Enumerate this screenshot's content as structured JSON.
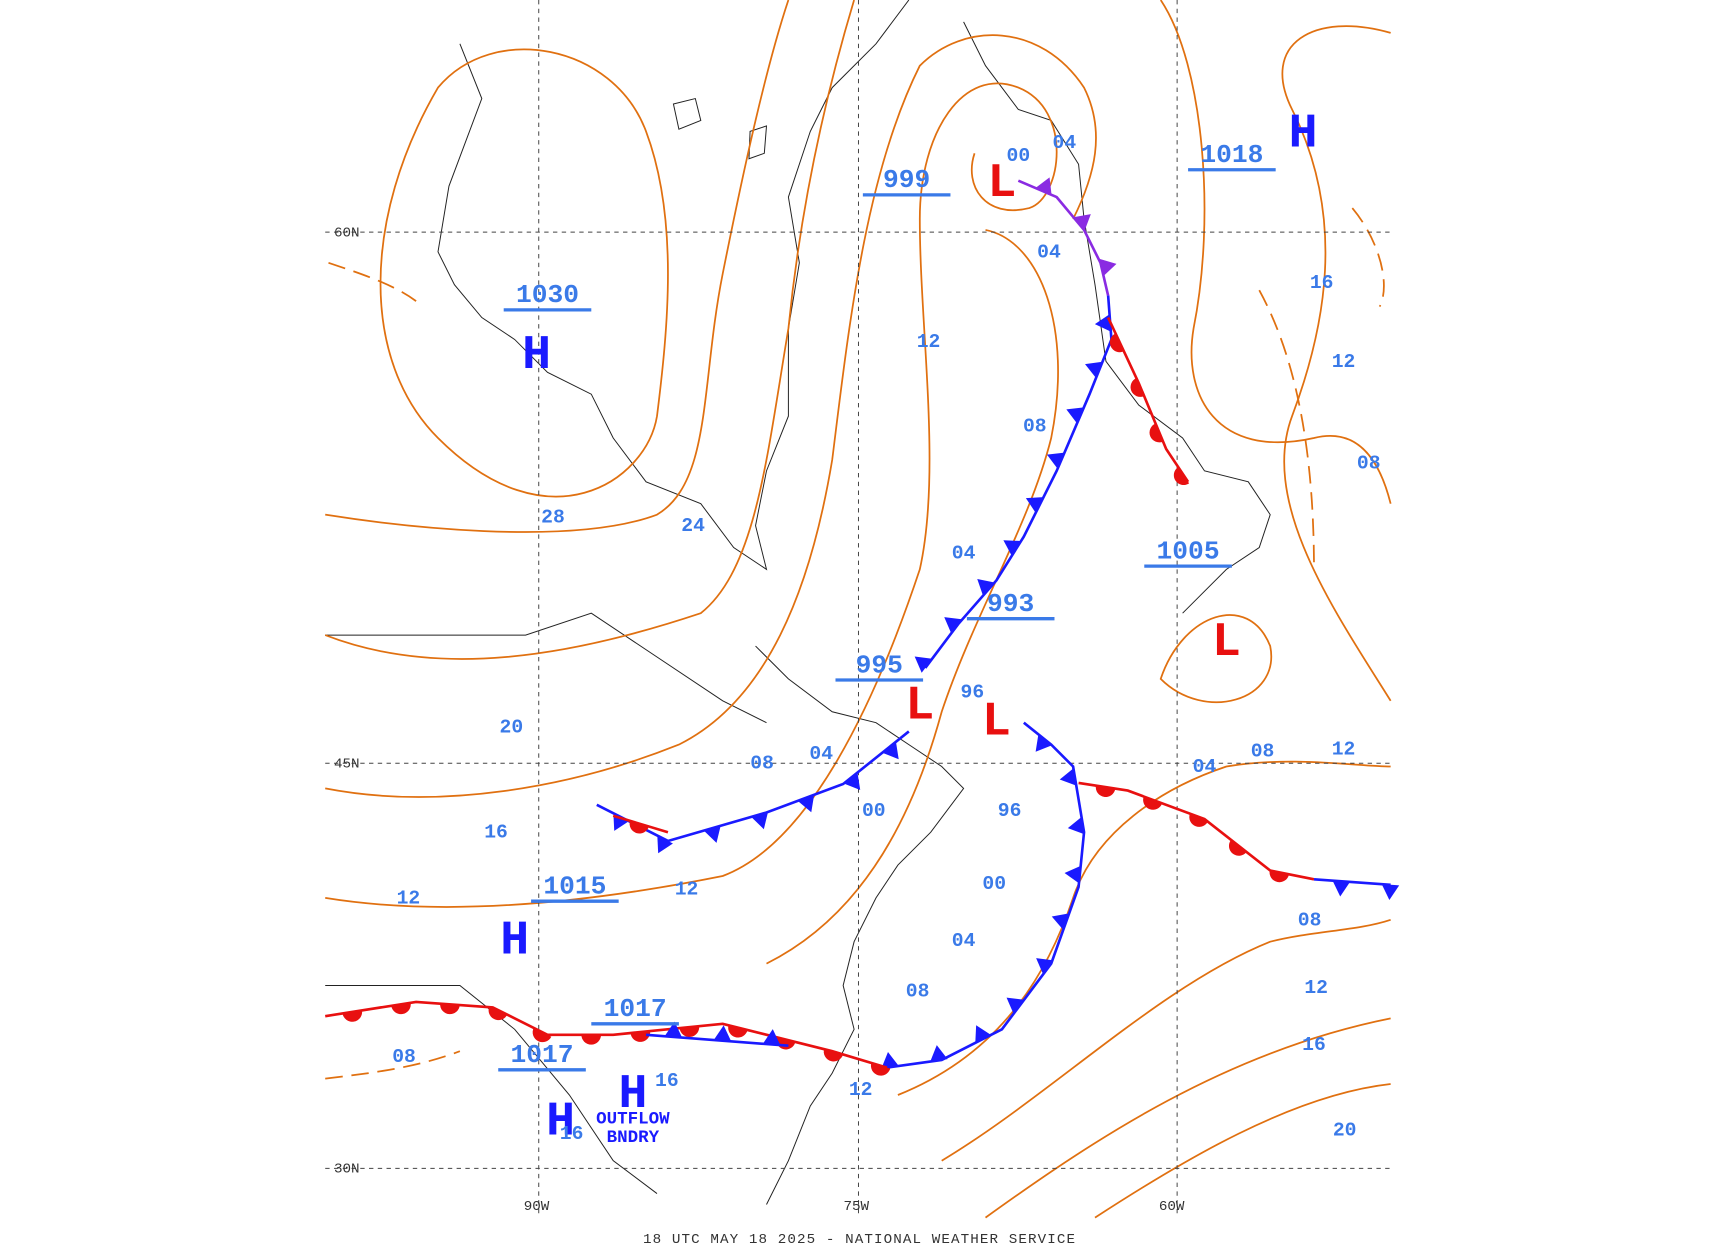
{
  "caption": "18 UTC MAY 18 2025 - NATIONAL WEATHER SERVICE",
  "grid_labels": [
    "60N",
    "45N",
    "30N",
    "90W",
    "75W",
    "60W"
  ],
  "pressure_centers": [
    {
      "symbol": "H",
      "pressure": "1030"
    },
    {
      "symbol": "H",
      "pressure": "1018"
    },
    {
      "symbol": "L",
      "pressure": "999"
    },
    {
      "symbol": "L",
      "pressure": "1005"
    },
    {
      "symbol": "L",
      "pressure": "993"
    },
    {
      "symbol": "L",
      "pressure": "995"
    },
    {
      "symbol": "H",
      "pressure": "1015"
    },
    {
      "symbol": "H",
      "pressure": "1017"
    },
    {
      "symbol": "H",
      "pressure": "1017"
    }
  ],
  "isobar_labels": [
    "28",
    "24",
    "20",
    "16",
    "12",
    "12",
    "12",
    "08",
    "04",
    "00",
    "04",
    "04",
    "96",
    "96",
    "00",
    "04",
    "08",
    "00",
    "04",
    "08",
    "12",
    "16",
    "12",
    "08",
    "04",
    "08",
    "12",
    "08",
    "12",
    "16",
    "20",
    "08",
    "16",
    "16"
  ],
  "annotation": [
    "OUTFLOW",
    "BNDRY"
  ]
}
